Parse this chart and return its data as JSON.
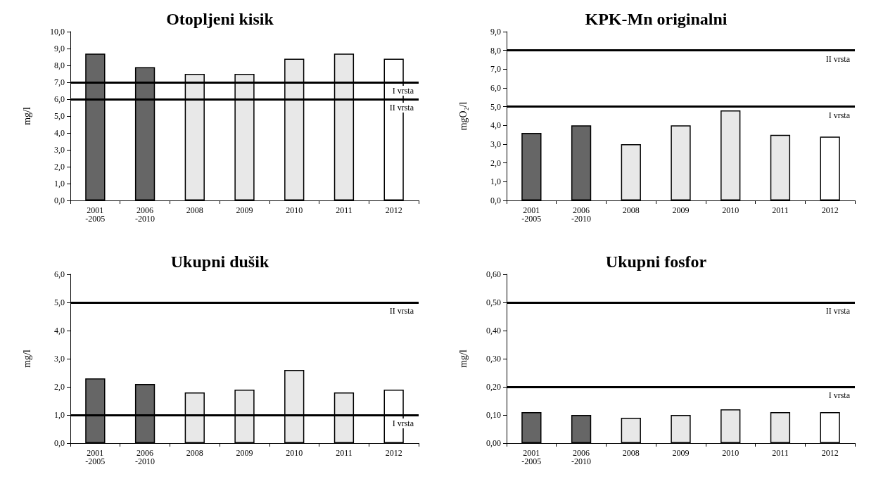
{
  "chart_data": [
    {
      "type": "bar",
      "title": "Otopljeni kisik",
      "ylabel": "mg/l",
      "categories": [
        "2001\n-2005",
        "2006\n-2010",
        "2008",
        "2009",
        "2010",
        "2011",
        "2012"
      ],
      "values": [
        8.7,
        7.9,
        7.5,
        7.5,
        8.4,
        8.7,
        8.4
      ],
      "colors": [
        "#666666",
        "#666666",
        "#e8e8e8",
        "#e8e8e8",
        "#e8e8e8",
        "#e8e8e8",
        "#ffffff"
      ],
      "ylim": [
        0,
        10
      ],
      "yticks": [
        {
          "value": 0,
          "label": "0,0"
        },
        {
          "value": 1,
          "label": "1,0"
        },
        {
          "value": 2,
          "label": "2,0"
        },
        {
          "value": 3,
          "label": "3,0"
        },
        {
          "value": 4,
          "label": "4,0"
        },
        {
          "value": 5,
          "label": "5,0"
        },
        {
          "value": 6,
          "label": "6,0"
        },
        {
          "value": 7,
          "label": "7,0"
        },
        {
          "value": 8,
          "label": "8,0"
        },
        {
          "value": 9,
          "label": "9,0"
        },
        {
          "value": 10,
          "label": "10,0"
        }
      ],
      "grid": false,
      "ref_lines": [
        {
          "axis": "y",
          "value": 7,
          "label": "I vrsta",
          "color": "#000000"
        },
        {
          "axis": "y",
          "value": 6,
          "label": "II vrsta",
          "color": "#000000"
        }
      ]
    },
    {
      "type": "bar",
      "title": "KPK-Mn originalni",
      "ylabel": "mgO₂/l",
      "categories": [
        "2001\n-2005",
        "2006\n-2010",
        "2008",
        "2009",
        "2010",
        "2011",
        "2012"
      ],
      "values": [
        3.6,
        4.0,
        3.0,
        4.0,
        4.8,
        3.5,
        3.4
      ],
      "colors": [
        "#666666",
        "#666666",
        "#e8e8e8",
        "#e8e8e8",
        "#e8e8e8",
        "#e8e8e8",
        "#ffffff"
      ],
      "ylim": [
        0,
        9
      ],
      "yticks": [
        {
          "value": 0,
          "label": "0,0"
        },
        {
          "value": 1,
          "label": "1,0"
        },
        {
          "value": 2,
          "label": "2,0"
        },
        {
          "value": 3,
          "label": "3,0"
        },
        {
          "value": 4,
          "label": "4,0"
        },
        {
          "value": 5,
          "label": "5,0"
        },
        {
          "value": 6,
          "label": "6,0"
        },
        {
          "value": 7,
          "label": "7,0"
        },
        {
          "value": 8,
          "label": "8,0"
        },
        {
          "value": 9,
          "label": "9,0"
        }
      ],
      "grid": false,
      "ref_lines": [
        {
          "axis": "y",
          "value": 8,
          "label": "II vrsta",
          "color": "#000000"
        },
        {
          "axis": "y",
          "value": 5,
          "label": "I vrsta",
          "color": "#000000"
        }
      ]
    },
    {
      "type": "bar",
      "title": "Ukupni dušik",
      "ylabel": "mg/l",
      "categories": [
        "2001\n-2005",
        "2006\n-2010",
        "2008",
        "2009",
        "2010",
        "2011",
        "2012"
      ],
      "values": [
        2.3,
        2.1,
        1.8,
        1.9,
        2.6,
        1.8,
        1.9
      ],
      "colors": [
        "#666666",
        "#666666",
        "#e8e8e8",
        "#e8e8e8",
        "#e8e8e8",
        "#e8e8e8",
        "#ffffff"
      ],
      "ylim": [
        0,
        6
      ],
      "yticks": [
        {
          "value": 0,
          "label": "0,0"
        },
        {
          "value": 1,
          "label": "1,0"
        },
        {
          "value": 2,
          "label": "2,0"
        },
        {
          "value": 3,
          "label": "3,0"
        },
        {
          "value": 4,
          "label": "4,0"
        },
        {
          "value": 5,
          "label": "5,0"
        },
        {
          "value": 6,
          "label": "6,0"
        }
      ],
      "grid": false,
      "ref_lines": [
        {
          "axis": "y",
          "value": 5,
          "label": "II vrsta",
          "color": "#000000"
        },
        {
          "axis": "y",
          "value": 1,
          "label": "I vrsta",
          "color": "#000000"
        }
      ]
    },
    {
      "type": "bar",
      "title": "Ukupni fosfor",
      "ylabel": "mg/l",
      "categories": [
        "2001\n-2005",
        "2006\n-2010",
        "2008",
        "2009",
        "2010",
        "2011",
        "2012"
      ],
      "values": [
        0.11,
        0.1,
        0.09,
        0.1,
        0.12,
        0.11,
        0.11
      ],
      "colors": [
        "#666666",
        "#666666",
        "#e8e8e8",
        "#e8e8e8",
        "#e8e8e8",
        "#e8e8e8",
        "#ffffff"
      ],
      "ylim": [
        0,
        0.6
      ],
      "yticks": [
        {
          "value": 0,
          "label": "0,00"
        },
        {
          "value": 0.1,
          "label": "0,10"
        },
        {
          "value": 0.2,
          "label": "0,20"
        },
        {
          "value": 0.3,
          "label": "0,30"
        },
        {
          "value": 0.4,
          "label": "0,40"
        },
        {
          "value": 0.5,
          "label": "0,50"
        },
        {
          "value": 0.6,
          "label": "0,60"
        }
      ],
      "grid": false,
      "ref_lines": [
        {
          "axis": "y",
          "value": 0.5,
          "label": "II vrsta",
          "color": "#000000"
        },
        {
          "axis": "y",
          "value": 0.2,
          "label": "I vrsta",
          "color": "#000000"
        }
      ]
    }
  ]
}
